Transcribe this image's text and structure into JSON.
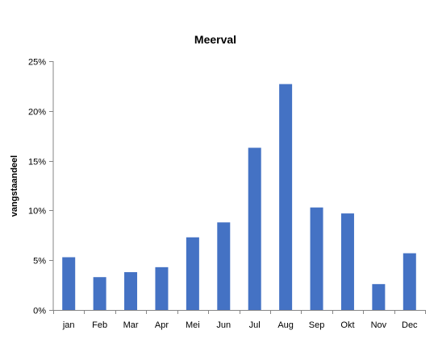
{
  "chart_data": {
    "type": "bar",
    "title": "Meerval",
    "xlabel": "",
    "ylabel": "vangstaandeel",
    "categories": [
      "jan",
      "Feb",
      "Mar",
      "Apr",
      "Mei",
      "Jun",
      "Jul",
      "Aug",
      "Sep",
      "Okt",
      "Nov",
      "Dec"
    ],
    "values": [
      5.3,
      3.3,
      3.8,
      4.3,
      7.3,
      8.8,
      16.3,
      22.7,
      10.3,
      9.7,
      2.6,
      5.7
    ],
    "value_unit": "%",
    "ylim": [
      0,
      25
    ],
    "yticks": [
      0,
      5,
      10,
      15,
      20,
      25
    ],
    "ytick_labels": [
      "0%",
      "5%",
      "10%",
      "15%",
      "20%",
      "25%"
    ],
    "grid": false,
    "legend": "none",
    "bar_color": "#4472C4"
  }
}
